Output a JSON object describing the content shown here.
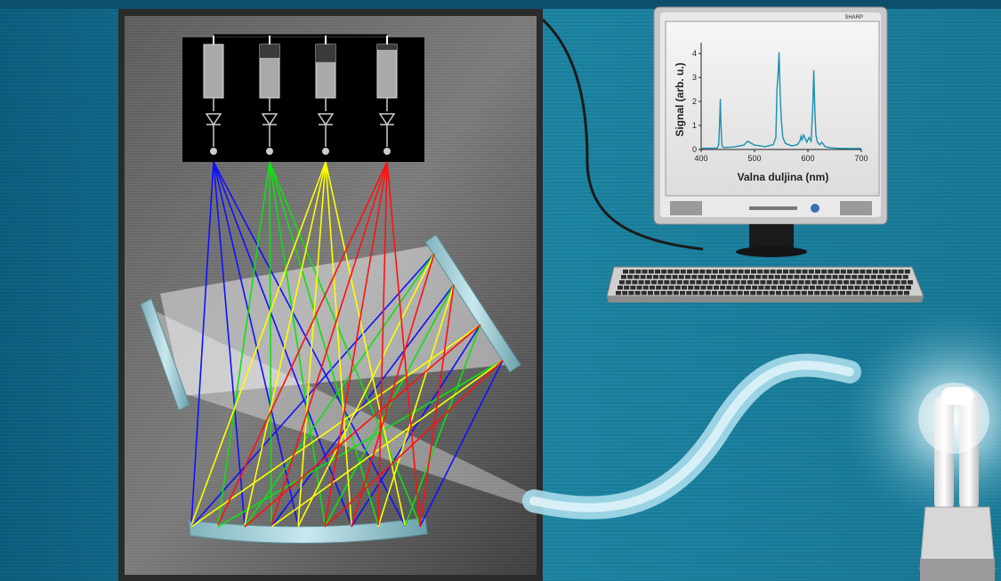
{
  "colors": {
    "background": "#1f86a3",
    "panel": "#6e6e6e",
    "ray_blue": "#1010ff",
    "ray_green": "#10e010",
    "ray_yellow": "#ffff00",
    "ray_red": "#ff1010",
    "spectrum_line": "#1a8fb0",
    "fiber": "#bfe9f5"
  },
  "detectors": {
    "count": 4,
    "levels": [
      0.0,
      0.25,
      0.33,
      0.1
    ],
    "colors": [
      "ray_blue",
      "ray_green",
      "ray_yellow",
      "ray_red"
    ]
  },
  "monitor": {
    "brand": "SHARP"
  },
  "chart_data": {
    "type": "line",
    "xlabel": "Valna duljina (nm)",
    "ylabel": "Signal (arb. u.)",
    "xlim": [
      400,
      700
    ],
    "ylim": [
      0,
      4.3
    ],
    "xticks": [
      400,
      500,
      600,
      700
    ],
    "yticks": [
      0,
      1,
      2,
      3,
      4
    ],
    "grid": false,
    "series": [
      {
        "x": [
          400,
          430,
          433,
          435,
          436,
          437,
          439,
          442,
          460,
          480,
          487,
          492,
          500,
          520,
          535,
          540,
          542,
          544,
          546,
          548,
          550,
          553,
          558,
          570,
          580,
          585,
          587,
          589,
          592,
          595,
          598,
          602,
          606,
          609,
          611,
          613,
          615,
          618,
          622,
          626,
          628,
          632,
          640,
          650,
          660,
          680,
          700
        ],
        "y": [
          0.05,
          0.06,
          0.2,
          1.4,
          2.1,
          1.1,
          0.15,
          0.08,
          0.1,
          0.18,
          0.35,
          0.28,
          0.18,
          0.12,
          0.2,
          0.5,
          2.5,
          3.1,
          4.05,
          2.3,
          1.3,
          0.5,
          0.25,
          0.15,
          0.2,
          0.35,
          0.55,
          0.4,
          0.6,
          0.45,
          0.3,
          0.5,
          0.35,
          1.7,
          3.3,
          1.6,
          0.6,
          0.3,
          0.2,
          0.3,
          0.25,
          0.12,
          0.08,
          0.06,
          0.05,
          0.04,
          0.04
        ]
      }
    ]
  }
}
